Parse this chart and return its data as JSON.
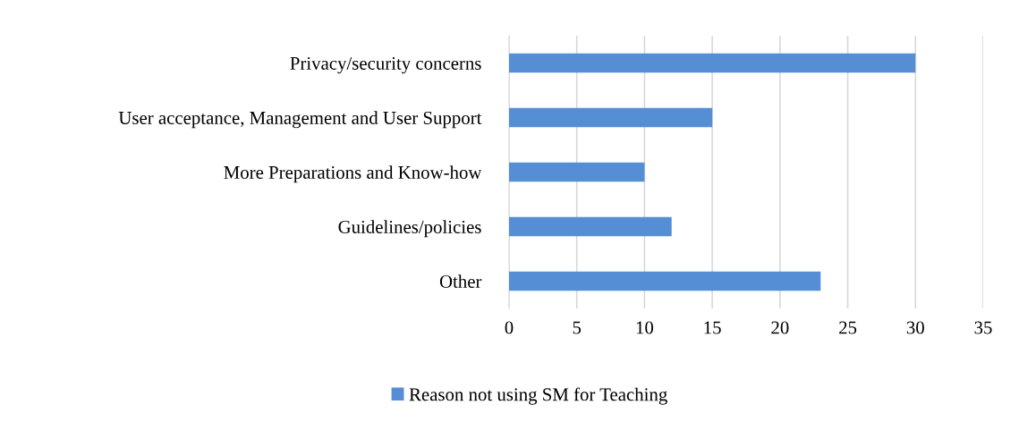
{
  "chart_data": {
    "type": "bar",
    "orientation": "horizontal",
    "categories": [
      "Privacy/security concerns",
      "User acceptance, Management and User Support",
      "More Preparations and Know-how",
      "Guidelines/policies",
      "Other"
    ],
    "series": [
      {
        "name": "Reason not using SM for Teaching",
        "color": "#558ed5",
        "values": [
          30,
          15,
          10,
          12,
          23
        ]
      }
    ],
    "xlim": [
      0,
      35
    ],
    "xticks": [
      0,
      5,
      10,
      15,
      20,
      25,
      30,
      35
    ],
    "grid": "x",
    "legend": "bottom"
  }
}
